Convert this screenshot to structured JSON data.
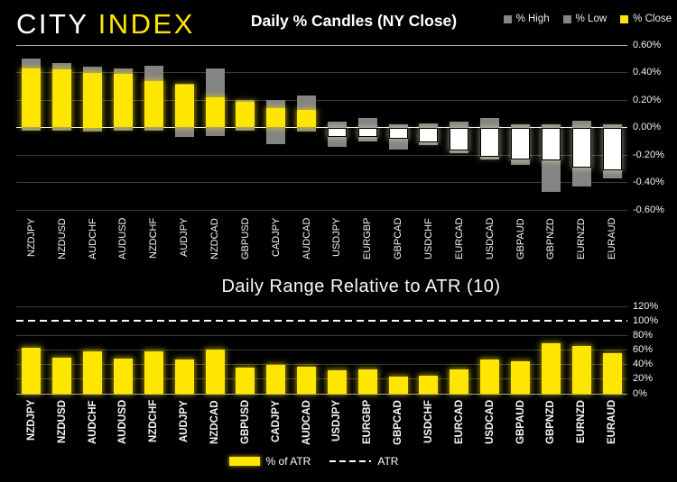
{
  "logo": {
    "city": "CITY",
    "index": "INDEX"
  },
  "colors": {
    "accent_yellow": "#ffe600",
    "neutral_gray": "#848484",
    "negative_white": "#ffffff",
    "background": "#000000"
  },
  "chart_data": [
    {
      "type": "bar",
      "subtype": "daily-percent-candles",
      "title": "Daily % Candles (NY Close)",
      "categories": [
        "NZDJPY",
        "NZDUSD",
        "AUDCHF",
        "AUDUSD",
        "NZDCHF",
        "AUDJPY",
        "NZDCAD",
        "GBPUSD",
        "CADJPY",
        "AUDCAD",
        "USDJPY",
        "EURGBP",
        "GBPCAD",
        "USDCHF",
        "EURCAD",
        "USDCAD",
        "GBPAUD",
        "GBPNZD",
        "EURNZD",
        "EURAUD"
      ],
      "series": [
        {
          "name": "% High",
          "color": "#848484",
          "values": [
            0.5,
            0.47,
            0.44,
            0.43,
            0.45,
            0.32,
            0.43,
            0.2,
            0.2,
            0.23,
            0.04,
            0.07,
            0.02,
            0.03,
            0.04,
            0.07,
            0.02,
            0.02,
            0.05,
            0.02
          ]
        },
        {
          "name": "% Low",
          "color": "#848484",
          "values": [
            -0.02,
            -0.02,
            -0.03,
            -0.02,
            -0.02,
            -0.07,
            -0.06,
            -0.02,
            -0.12,
            -0.03,
            -0.14,
            -0.1,
            -0.16,
            -0.13,
            -0.19,
            -0.23,
            -0.27,
            -0.47,
            -0.43,
            -0.37
          ]
        },
        {
          "name": "% Close",
          "color": "#ffe600",
          "values": [
            0.43,
            0.42,
            0.4,
            0.39,
            0.34,
            0.31,
            0.22,
            0.19,
            0.14,
            0.13,
            -0.07,
            -0.07,
            -0.08,
            -0.11,
            -0.17,
            -0.21,
            -0.23,
            -0.24,
            -0.29,
            -0.31
          ]
        }
      ],
      "negative_close_color": "#ffffff",
      "ylim": [
        -0.6,
        0.6
      ],
      "y_ticks": [
        "0.60%",
        "0.40%",
        "0.20%",
        "0.00%",
        "-0.20%",
        "-0.40%",
        "-0.60%"
      ],
      "grid": true,
      "legend_position": "top-right"
    },
    {
      "type": "bar",
      "title": "Daily Range Relative to ATR (10)",
      "categories": [
        "NZDJPY",
        "NZDUSD",
        "AUDCHF",
        "AUDUSD",
        "NZDCHF",
        "AUDJPY",
        "NZDCAD",
        "GBPUSD",
        "CADJPY",
        "AUDCAD",
        "USDJPY",
        "EURGBP",
        "GBPCAD",
        "USDCHF",
        "EURCAD",
        "USDCAD",
        "GBPAUD",
        "GBPNZD",
        "EURNZD",
        "EURAUD"
      ],
      "values": [
        63,
        49,
        58,
        48,
        58,
        47,
        61,
        36,
        40,
        37,
        32,
        34,
        24,
        25,
        34,
        47,
        45,
        69,
        66,
        56
      ],
      "bar_color": "#ffe600",
      "ylim": [
        0,
        120
      ],
      "y_ticks": [
        "120%",
        "100%",
        "80%",
        "60%",
        "40%",
        "20%",
        "0%"
      ],
      "reference_line": {
        "value": 100,
        "style": "dashed",
        "color": "#ffffff",
        "label": "ATR"
      },
      "grid": true,
      "legend": {
        "bar_label": "% of ATR",
        "line_label": "ATR"
      },
      "legend_position": "bottom-center"
    }
  ]
}
